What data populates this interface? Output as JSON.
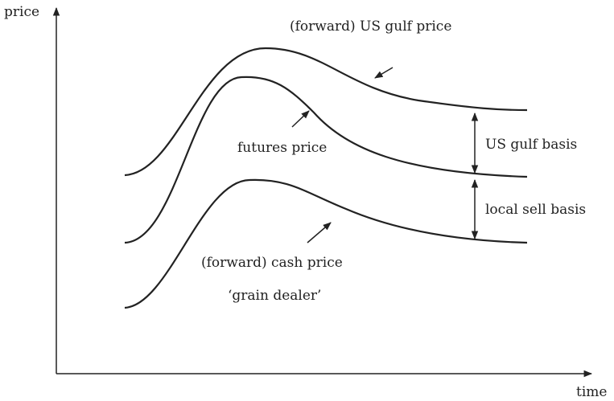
{
  "axes": {
    "y_label": "price",
    "x_label": "time"
  },
  "curves": [
    {
      "label": "(forward) US gulf price"
    },
    {
      "label": "futures price"
    },
    {
      "label": "(forward) cash price",
      "sublabel": "‘grain dealer’"
    }
  ],
  "bases": [
    {
      "label": "US gulf basis"
    },
    {
      "label": "local sell basis"
    }
  ]
}
